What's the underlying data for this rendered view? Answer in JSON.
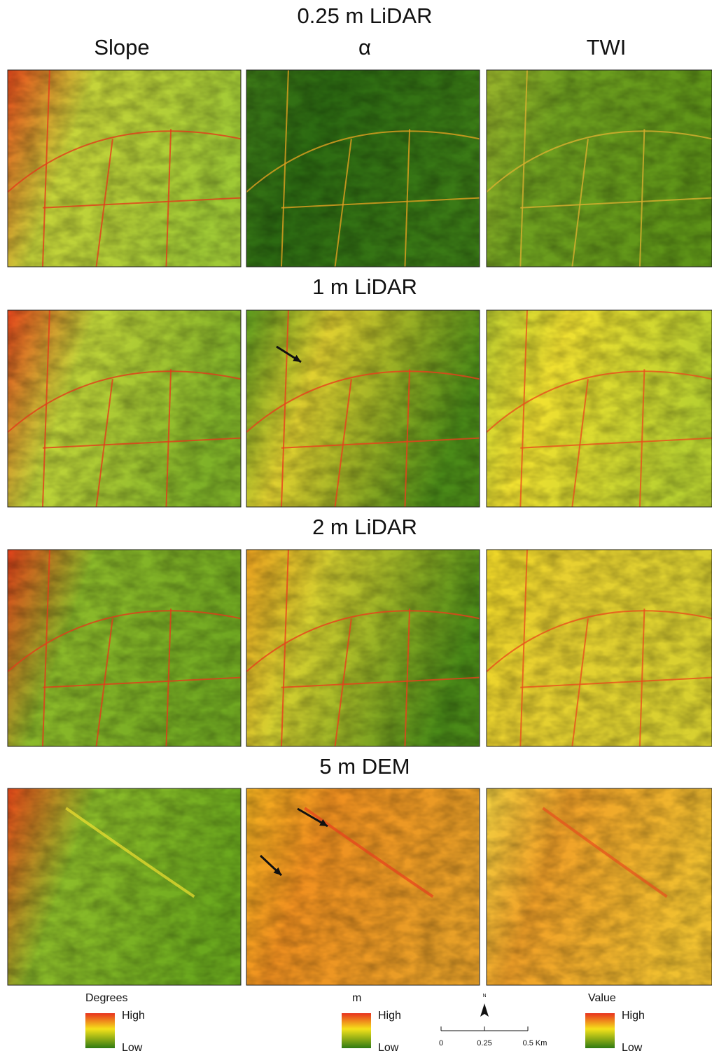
{
  "title_rows": [
    "0.25 m LiDAR",
    "1 m LiDAR",
    "2 m LiDAR",
    "5 m DEM"
  ],
  "columns": [
    "Slope",
    "α",
    "TWI"
  ],
  "legends": [
    {
      "title": "Degrees",
      "high": "High",
      "low": "Low"
    },
    {
      "title": "m",
      "high": "High",
      "low": "Low"
    },
    {
      "title": "Value",
      "high": "High",
      "low": "Low"
    }
  ],
  "north": "N",
  "scale_bar": [
    "0",
    "0.25",
    "0.5 Km"
  ]
}
